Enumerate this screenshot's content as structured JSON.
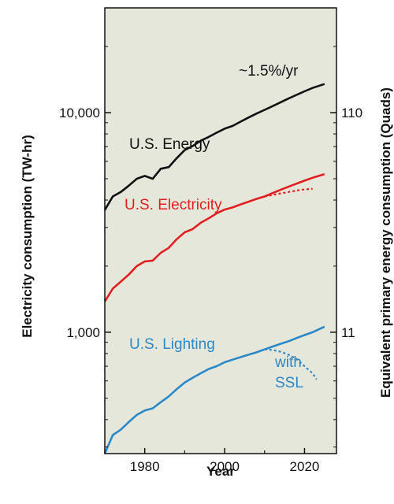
{
  "chart_data": {
    "type": "line",
    "title": "",
    "xlabel": "Year",
    "ylabel_left": "Electricity consumption (TW-hr)",
    "ylabel_right": "Equivalent primary energy consumption (Quads)",
    "x_range": [
      1970,
      2028
    ],
    "y_range": [
      280,
      30000
    ],
    "y_scale": "log",
    "grid": false,
    "background_color": "#e6e7db",
    "x_ticks": [
      1980,
      2000,
      2020
    ],
    "x_tick_labels": [
      "1980",
      "2000",
      "2020"
    ],
    "y_left_ticks": [
      1000,
      10000
    ],
    "y_left_tick_labels": [
      "1,000",
      "10,000"
    ],
    "y_right_ticks": [
      1000,
      10000
    ],
    "y_right_tick_labels": [
      "11",
      "110"
    ],
    "series": [
      {
        "name": "U.S. Energy",
        "color": "#111111",
        "dashed": false,
        "points": [
          [
            1970,
            3600
          ],
          [
            1972,
            4150
          ],
          [
            1974,
            4350
          ],
          [
            1976,
            4650
          ],
          [
            1978,
            5000
          ],
          [
            1980,
            5150
          ],
          [
            1982,
            5000
          ],
          [
            1984,
            5550
          ],
          [
            1986,
            5650
          ],
          [
            1988,
            6200
          ],
          [
            1990,
            6750
          ],
          [
            1992,
            7050
          ],
          [
            1994,
            7450
          ],
          [
            1996,
            7750
          ],
          [
            1998,
            8100
          ],
          [
            2000,
            8450
          ],
          [
            2002,
            8700
          ],
          [
            2004,
            9100
          ],
          [
            2006,
            9500
          ],
          [
            2008,
            9900
          ],
          [
            2010,
            10300
          ],
          [
            2012,
            10700
          ],
          [
            2014,
            11150
          ],
          [
            2016,
            11600
          ],
          [
            2018,
            12050
          ],
          [
            2020,
            12500
          ],
          [
            2022,
            12950
          ],
          [
            2025,
            13500
          ]
        ]
      },
      {
        "name": "U.S. Electricity",
        "color": "#e02020",
        "dashed": false,
        "points": [
          [
            1970,
            1380
          ],
          [
            1972,
            1580
          ],
          [
            1974,
            1700
          ],
          [
            1976,
            1830
          ],
          [
            1978,
            2000
          ],
          [
            1980,
            2100
          ],
          [
            1982,
            2120
          ],
          [
            1984,
            2300
          ],
          [
            1986,
            2420
          ],
          [
            1988,
            2650
          ],
          [
            1990,
            2850
          ],
          [
            1992,
            2950
          ],
          [
            1994,
            3150
          ],
          [
            1996,
            3300
          ],
          [
            1998,
            3480
          ],
          [
            2000,
            3620
          ],
          [
            2002,
            3700
          ],
          [
            2004,
            3820
          ],
          [
            2006,
            3930
          ],
          [
            2008,
            4050
          ],
          [
            2010,
            4150
          ],
          [
            2012,
            4300
          ],
          [
            2014,
            4450
          ],
          [
            2016,
            4600
          ],
          [
            2018,
            4750
          ],
          [
            2020,
            4900
          ],
          [
            2022,
            5050
          ],
          [
            2025,
            5250
          ]
        ]
      },
      {
        "name": "",
        "color": "#e02020",
        "dashed": true,
        "points": [
          [
            2010,
            4150
          ],
          [
            2013,
            4250
          ],
          [
            2016,
            4350
          ],
          [
            2019,
            4450
          ],
          [
            2022,
            4500
          ]
        ]
      },
      {
        "name": "U.S. Lighting",
        "color": "#2b88c8",
        "dashed": false,
        "points": [
          [
            1970,
            280
          ],
          [
            1972,
            340
          ],
          [
            1974,
            360
          ],
          [
            1976,
            390
          ],
          [
            1978,
            420
          ],
          [
            1980,
            440
          ],
          [
            1982,
            450
          ],
          [
            1984,
            480
          ],
          [
            1986,
            510
          ],
          [
            1988,
            550
          ],
          [
            1990,
            590
          ],
          [
            1992,
            620
          ],
          [
            1994,
            650
          ],
          [
            1996,
            680
          ],
          [
            1998,
            700
          ],
          [
            2000,
            730
          ],
          [
            2002,
            750
          ],
          [
            2004,
            770
          ],
          [
            2006,
            790
          ],
          [
            2008,
            810
          ],
          [
            2010,
            835
          ],
          [
            2012,
            860
          ],
          [
            2014,
            885
          ],
          [
            2016,
            910
          ],
          [
            2018,
            940
          ],
          [
            2020,
            970
          ],
          [
            2022,
            1000
          ],
          [
            2025,
            1060
          ]
        ]
      },
      {
        "name": "",
        "color": "#2b88c8",
        "dashed": true,
        "points": [
          [
            2010,
            835
          ],
          [
            2012,
            830
          ],
          [
            2014,
            815
          ],
          [
            2016,
            790
          ],
          [
            2018,
            755
          ],
          [
            2020,
            700
          ],
          [
            2022,
            650
          ],
          [
            2023,
            610
          ]
        ]
      }
    ],
    "annotations": [
      {
        "text": "~1.5%/yr",
        "color": "#111111"
      },
      {
        "text": "U.S. Energy",
        "color": "#111111"
      },
      {
        "text": "U.S. Electricity",
        "color": "#e02020"
      },
      {
        "text": "U.S. Lighting",
        "color": "#2b88c8"
      },
      {
        "text": "with",
        "color": "#2b88c8"
      },
      {
        "text": "SSL",
        "color": "#2b88c8"
      }
    ]
  }
}
